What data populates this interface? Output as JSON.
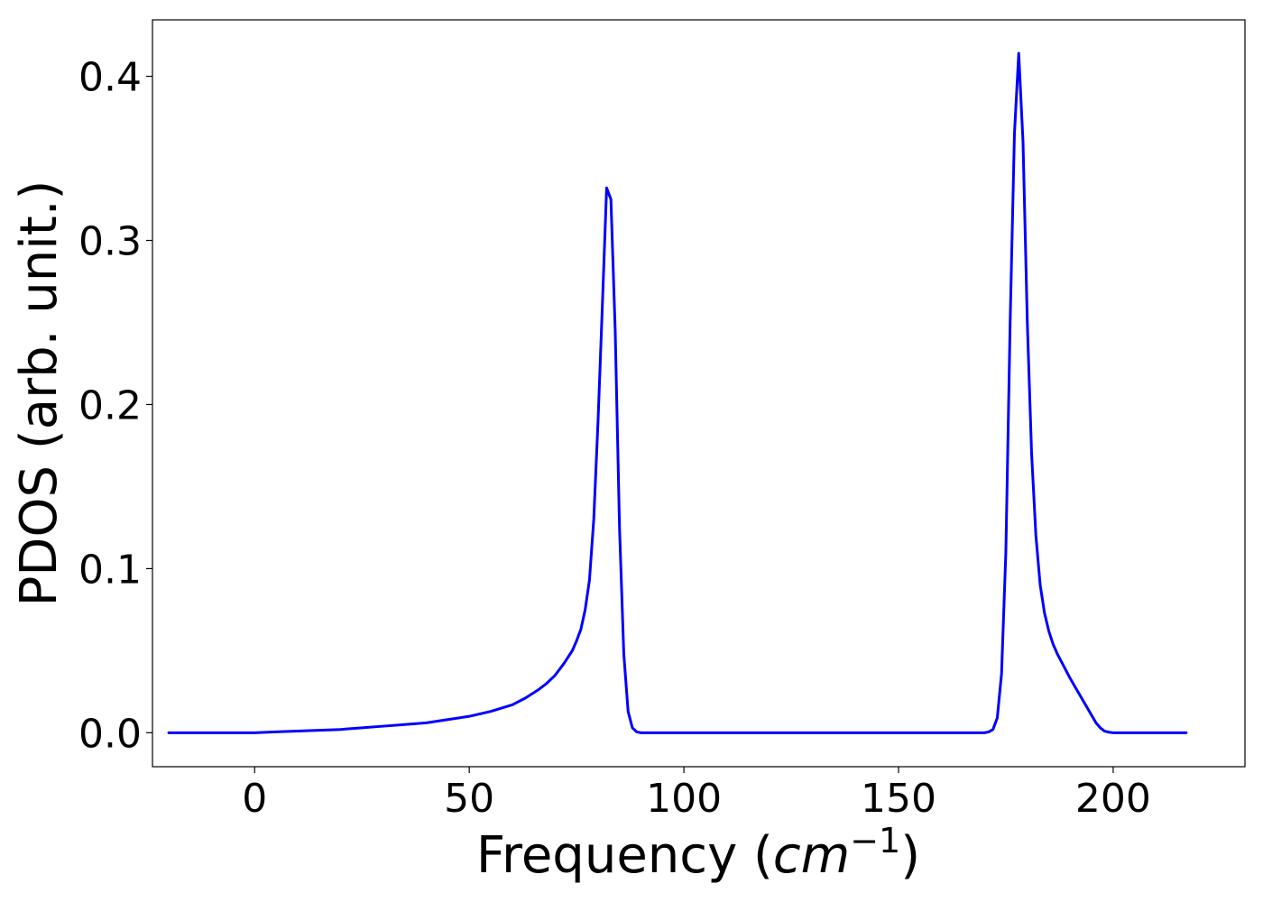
{
  "chart_data": {
    "type": "line",
    "title": "",
    "xlabel": "Frequency (",
    "xlabel_math": "cm",
    "xlabel_sup": "−1",
    "xlabel_close": ")",
    "ylabel": "PDOS (arb. unit.)",
    "xlim": [
      -23.8,
      230.7
    ],
    "ylim": [
      -0.0207,
      0.4344
    ],
    "xticks": [
      0,
      50,
      100,
      150,
      200
    ],
    "xtick_labels": [
      "0",
      "50",
      "100",
      "150",
      "200"
    ],
    "yticks": [
      0.0,
      0.1,
      0.2,
      0.3,
      0.4
    ],
    "ytick_labels": [
      "0.0",
      "0.1",
      "0.2",
      "0.3",
      "0.4"
    ],
    "grid": false,
    "series": [
      {
        "color": "#0000ff",
        "x": [
          -20,
          0,
          5,
          10,
          15,
          20,
          25,
          30,
          35,
          40,
          45,
          50,
          55,
          60,
          63,
          66,
          68,
          70,
          72,
          74,
          75,
          76,
          77,
          78,
          79,
          79.5,
          80,
          81,
          82,
          83,
          84,
          85,
          86,
          87,
          88,
          89,
          90,
          91,
          92,
          100,
          120,
          150,
          170,
          171,
          172,
          173,
          174,
          175,
          176,
          177,
          178,
          179,
          180,
          181,
          182,
          183,
          184,
          185,
          186,
          187,
          188,
          190,
          192,
          194,
          196,
          197,
          198,
          199,
          200,
          201,
          202,
          205,
          217
        ],
        "y": [
          0.0,
          0.0,
          0.0005,
          0.001,
          0.0015,
          0.002,
          0.003,
          0.004,
          0.005,
          0.006,
          0.008,
          0.01,
          0.013,
          0.017,
          0.021,
          0.026,
          0.03,
          0.035,
          0.042,
          0.05,
          0.056,
          0.063,
          0.075,
          0.093,
          0.13,
          0.16,
          0.19,
          0.26,
          0.332,
          0.325,
          0.245,
          0.125,
          0.048,
          0.013,
          0.003,
          0.0005,
          0.0,
          0.0,
          0.0,
          0.0,
          0.0,
          0.0,
          0.0,
          0.0005,
          0.002,
          0.009,
          0.036,
          0.11,
          0.25,
          0.365,
          0.414,
          0.36,
          0.25,
          0.17,
          0.12,
          0.09,
          0.073,
          0.062,
          0.054,
          0.048,
          0.043,
          0.033,
          0.024,
          0.015,
          0.006,
          0.003,
          0.001,
          0.0003,
          0.0,
          0.0,
          0.0,
          0.0,
          0.0
        ]
      }
    ]
  }
}
